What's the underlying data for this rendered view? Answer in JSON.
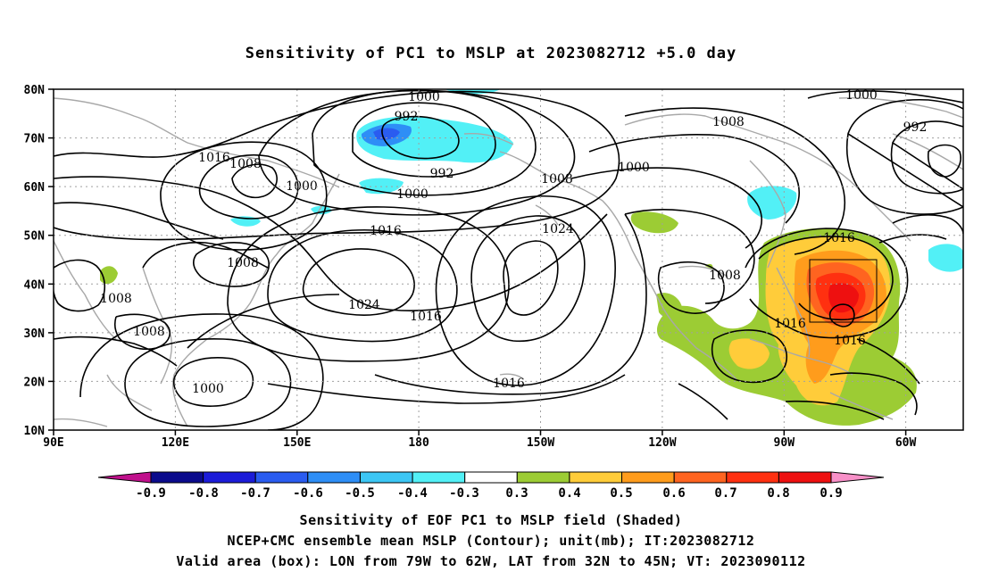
{
  "title": "Sensitivity of PC1 to MSLP at 2023082712 +5.0 day",
  "map": {
    "lon_ticks": [
      "90E",
      "120E",
      "150E",
      "180",
      "150W",
      "120W",
      "90W",
      "60W"
    ],
    "lat_ticks": [
      "80N",
      "70N",
      "60N",
      "50N",
      "40N",
      "30N",
      "20N",
      "10N"
    ],
    "contour_labels": [
      "1000",
      "992",
      "1008",
      "1016",
      "1000",
      "1008",
      "1000",
      "992",
      "1000",
      "1008",
      "1000",
      "1016",
      "1024",
      "1016",
      "1008",
      "1008",
      "1008",
      "1024",
      "1016",
      "1000",
      "1016",
      "1016",
      "1008",
      "1016",
      "1016",
      "1000",
      "992"
    ],
    "valid_box": {
      "lon_from": "79W",
      "lon_to": "62W",
      "lat_from": "32N",
      "lat_to": "45N"
    }
  },
  "colorbar": {
    "labels": [
      "-0.9",
      "-0.8",
      "-0.7",
      "-0.6",
      "-0.5",
      "-0.4",
      "-0.3",
      "0.3",
      "0.4",
      "0.5",
      "0.6",
      "0.7",
      "0.8",
      "0.9"
    ],
    "colors": [
      "#0b0b8c",
      "#1c1cd8",
      "#2a5cf0",
      "#2e8ef6",
      "#3cc6f4",
      "#52f0f6",
      "#ffffff",
      "#9ccc34",
      "#ffcc3a",
      "#ff9c1c",
      "#ff6420",
      "#ff3010",
      "#ee1010"
    ],
    "low_end_color": "#c0108c",
    "high_end_color": "#f890c8"
  },
  "captions": [
    "Sensitivity of EOF PC1 to MSLP field (Shaded)",
    "NCEP+CMC ensemble mean MSLP (Contour); unit(mb); IT:2023082712",
    "Valid area (box): LON from 79W to 62W, LAT from 32N to 45N; VT: 2023090112"
  ]
}
